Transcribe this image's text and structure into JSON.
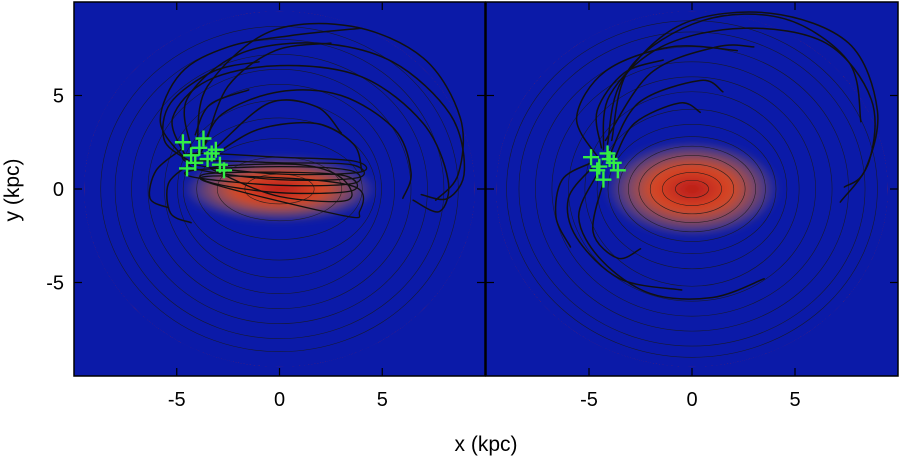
{
  "figure": {
    "xlabel": "x (kpc)",
    "ylabel": "y (kpc)"
  },
  "colors": {
    "map_stops": [
      "#0b1aa8",
      "#0a4be8",
      "#1fb8f0",
      "#5fe0d0",
      "#b8f060",
      "#f2f040",
      "#f6c030",
      "#f09020",
      "#e85020",
      "#c02020"
    ],
    "contour": "#1a1a1a",
    "orbit": "#111111",
    "marker": "#33ee44"
  },
  "chart_data": [
    {
      "type": "heatmap",
      "panel": "left",
      "title": "",
      "xlabel": "x (kpc)",
      "ylabel": "y (kpc)",
      "xlim": [
        -10,
        10
      ],
      "ylim": [
        -10,
        10
      ],
      "xticks": [
        -5,
        0,
        5
      ],
      "yticks": [
        -5,
        0,
        5
      ],
      "x_tick_labels": [
        "-5",
        "0",
        "5"
      ],
      "y_tick_labels": [
        "-5",
        "0",
        "5"
      ],
      "bar": {
        "center": [
          0,
          0
        ],
        "semi_axes": [
          3.8,
          1.1
        ]
      },
      "disk_radius": 9.5,
      "contour_radii": [
        1.0,
        2.0,
        3.0,
        4.0,
        4.8,
        5.6,
        6.4,
        7.2,
        8.0,
        8.7
      ],
      "markers": [
        {
          "x": -4.7,
          "y": 2.5
        },
        {
          "x": -4.3,
          "y": 1.8
        },
        {
          "x": -3.9,
          "y": 2.2
        },
        {
          "x": -3.5,
          "y": 1.6
        },
        {
          "x": -3.1,
          "y": 2.1
        },
        {
          "x": -2.9,
          "y": 1.3
        },
        {
          "x": -4.5,
          "y": 1.1
        },
        {
          "x": -3.7,
          "y": 2.7
        },
        {
          "x": -3.3,
          "y": 1.9
        },
        {
          "x": -4.1,
          "y": 1.4
        },
        {
          "x": -2.7,
          "y": 1.0
        }
      ],
      "orbits": [
        [
          [
            -4.6,
            1.8
          ],
          [
            -5.2,
            3.8
          ],
          [
            -3.5,
            5.8
          ],
          [
            0,
            6.6
          ],
          [
            4,
            6
          ],
          [
            7,
            3.5
          ],
          [
            8.2,
            0.5
          ],
          [
            7.8,
            -1.2
          ],
          [
            6.5,
            -0.6
          ]
        ],
        [
          [
            -4.3,
            2.2
          ],
          [
            -4.5,
            4.8
          ],
          [
            -2,
            7.2
          ],
          [
            1.8,
            7.8
          ],
          [
            5.5,
            6.8
          ],
          [
            8.3,
            4
          ],
          [
            9,
            1
          ],
          [
            8.2,
            -0.5
          ],
          [
            6.9,
            -0.3
          ]
        ],
        [
          [
            -4,
            2.6
          ],
          [
            -3.5,
            5.5
          ],
          [
            -0.5,
            8.4
          ],
          [
            3.5,
            8.7
          ],
          [
            7,
            7
          ],
          [
            8.8,
            3.8
          ],
          [
            8.7,
            0.8
          ],
          [
            7.6,
            -0.6
          ]
        ],
        [
          [
            -3.8,
            2
          ],
          [
            -2.8,
            4
          ],
          [
            0,
            5.2
          ],
          [
            3,
            5
          ],
          [
            5.6,
            3.2
          ],
          [
            6.4,
            0.9
          ],
          [
            6,
            -0.5
          ]
        ],
        [
          [
            -4.4,
            1.5
          ],
          [
            -5.6,
            2.6
          ],
          [
            -5.3,
            4.6
          ],
          [
            -3.2,
            6.3
          ],
          [
            -1,
            6.8
          ]
        ],
        [
          [
            -3.6,
            2.4
          ],
          [
            -2.5,
            5.5
          ],
          [
            -0.2,
            7.4
          ],
          [
            2.5,
            7.8
          ]
        ],
        [
          [
            -3.2,
            1.8
          ],
          [
            -1,
            3.2
          ],
          [
            1.8,
            3.5
          ],
          [
            3.6,
            2.4
          ],
          [
            4,
            1
          ]
        ],
        [
          [
            -4.8,
            2.1
          ],
          [
            -6,
            1
          ],
          [
            -6.3,
            -0.5
          ],
          [
            -5.4,
            -1
          ]
        ],
        [
          [
            -4.4,
            1.3
          ],
          [
            -5.4,
            0.3
          ],
          [
            -5.3,
            -1.3
          ],
          [
            -4.3,
            -1.8
          ]
        ],
        [
          [
            -3,
            2.3
          ],
          [
            -0.5,
            4.6
          ],
          [
            1.8,
            4.4
          ],
          [
            3,
            3
          ]
        ],
        [
          [
            -4.1,
            2.9
          ],
          [
            -3.4,
            4.5
          ],
          [
            -1.5,
            5.3
          ]
        ],
        [
          [
            -4.6,
            1.6
          ],
          [
            -5.8,
            3.6
          ],
          [
            -4.8,
            6.2
          ],
          [
            -2.5,
            7.6
          ],
          [
            0.5,
            8.2
          ],
          [
            4,
            8.6
          ]
        ]
      ],
      "bar_orbits": [
        [
          [
            -4.2,
            1.0
          ],
          [
            0,
            1.2
          ],
          [
            3.4,
            1.0
          ],
          [
            3.6,
            0.3
          ],
          [
            0,
            0.2
          ],
          [
            -4,
            0.6
          ]
        ],
        [
          [
            -4.0,
            1.5
          ],
          [
            0,
            1.4
          ],
          [
            3.5,
            1.3
          ],
          [
            3.8,
            0.6
          ],
          [
            0,
            0.5
          ],
          [
            -3.8,
            1.0
          ]
        ],
        [
          [
            -3.6,
            0.8
          ],
          [
            0,
            0.9
          ],
          [
            3.2,
            0.7
          ],
          [
            3.5,
            -0.1
          ],
          [
            0,
            -0.2
          ],
          [
            -3.2,
            0.3
          ]
        ],
        [
          [
            -4.3,
            1.9
          ],
          [
            0,
            1.7
          ],
          [
            3.6,
            1.5
          ],
          [
            3.9,
            0.9
          ],
          [
            0,
            0.8
          ],
          [
            -4.1,
            1.3
          ]
        ],
        [
          [
            -3.0,
            1.2
          ],
          [
            1,
            1.3
          ],
          [
            3,
            0.6
          ],
          [
            3.3,
            -0.6
          ],
          [
            0,
            -0.4
          ],
          [
            -2.8,
            0.8
          ]
        ],
        [
          [
            -3.8,
            0.5
          ],
          [
            0,
            0.6
          ],
          [
            3.7,
            0.1
          ],
          [
            3.9,
            -1.2
          ],
          [
            3.0,
            -1.4
          ]
        ]
      ]
    },
    {
      "type": "heatmap",
      "panel": "right",
      "title": "",
      "xlabel": "x (kpc)",
      "ylabel": "",
      "xlim": [
        -10,
        10
      ],
      "ylim": [
        -10,
        10
      ],
      "xticks": [
        -5,
        0,
        5
      ],
      "yticks": [
        -5,
        0,
        5
      ],
      "x_tick_labels": [
        "-5",
        "0",
        "5"
      ],
      "y_tick_labels": [],
      "bar": {
        "center": [
          0,
          0
        ],
        "semi_axes": [
          3.4,
          1.6
        ]
      },
      "disk_radius": 9.5,
      "contour_radii": [
        0.6,
        1.1,
        1.6,
        2.1,
        2.6,
        3.1,
        3.7,
        4.4,
        5.2,
        6.0,
        6.8,
        7.6,
        8.4,
        9.0
      ],
      "markers": [
        {
          "x": -4.9,
          "y": 1.7
        },
        {
          "x": -4.5,
          "y": 1.2
        },
        {
          "x": -4.1,
          "y": 1.9
        },
        {
          "x": -3.8,
          "y": 1.4
        },
        {
          "x": -4.3,
          "y": 0.5
        },
        {
          "x": -3.6,
          "y": 1.0
        },
        {
          "x": -4.6,
          "y": 1.0
        },
        {
          "x": -4.0,
          "y": 1.6
        }
      ],
      "orbits": [
        [
          [
            -4.3,
            2.1
          ],
          [
            -4,
            5
          ],
          [
            -1.5,
            7.6
          ],
          [
            2.5,
            8.6
          ],
          [
            6.5,
            7.8
          ],
          [
            8.7,
            4.8
          ],
          [
            8.6,
            1.5
          ],
          [
            7.2,
            -0.7
          ]
        ],
        [
          [
            -4.1,
            2.4
          ],
          [
            -3.4,
            5.8
          ],
          [
            -0.5,
            8.8
          ],
          [
            3.8,
            9.4
          ],
          [
            7.6,
            7.8
          ],
          [
            9,
            4.2
          ],
          [
            8.4,
            1
          ],
          [
            7.4,
            0.1
          ]
        ],
        [
          [
            -3.9,
            2.6
          ],
          [
            -3,
            6.5
          ],
          [
            0.5,
            9
          ],
          [
            4.5,
            9.1
          ],
          [
            7.6,
            6.8
          ],
          [
            8.2,
            3.6
          ]
        ],
        [
          [
            -4.5,
            1.6
          ],
          [
            -5.6,
            3.8
          ],
          [
            -4.2,
            6.3
          ],
          [
            -1,
            7.6
          ],
          [
            2.2,
            7.4
          ]
        ],
        [
          [
            -4,
            1.8
          ],
          [
            -2.6,
            4.6
          ],
          [
            0.4,
            5.8
          ],
          [
            1.5,
            5.2
          ]
        ],
        [
          [
            -4.8,
            1.2
          ],
          [
            -6,
            -0.5
          ],
          [
            -5.6,
            -2.6
          ],
          [
            -3.5,
            -4.8
          ],
          [
            -0.5,
            -5.4
          ]
        ],
        [
          [
            -4.6,
            0.8
          ],
          [
            -5.5,
            -1.5
          ],
          [
            -4.4,
            -3.8
          ],
          [
            -2,
            -5.6
          ],
          [
            1,
            -5.8
          ],
          [
            3.5,
            -4.8
          ]
        ],
        [
          [
            -4.3,
            0.4
          ],
          [
            -4.8,
            -2.3
          ],
          [
            -3.6,
            -3.7
          ],
          [
            -2.5,
            -3.2
          ]
        ],
        [
          [
            -4.9,
            1.4
          ],
          [
            -6.3,
            0.5
          ],
          [
            -6.6,
            -1.5
          ],
          [
            -5.9,
            -3.1
          ]
        ],
        [
          [
            -4.4,
            2.2
          ],
          [
            -4.6,
            4.2
          ],
          [
            -3.3,
            6.2
          ],
          [
            -1.4,
            6.9
          ]
        ],
        [
          [
            -3.8,
            1.5
          ],
          [
            -2.8,
            3.5
          ],
          [
            -0.6,
            4.6
          ],
          [
            0.4,
            4.1
          ]
        ],
        [
          [
            -4.2,
            2.6
          ],
          [
            -2,
            6.2
          ],
          [
            1.2,
            7.6
          ],
          [
            3,
            7.6
          ]
        ]
      ],
      "bar_orbits": []
    }
  ]
}
